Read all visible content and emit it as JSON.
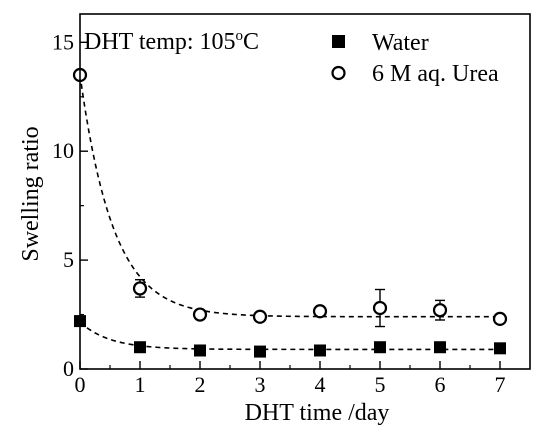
{
  "chart_data": {
    "type": "scatter",
    "xlabel": "DHT time /day",
    "ylabel": "Swelling ratio",
    "annotation_main": "DHT temp: 105",
    "annotation_sup": "o",
    "annotation_unit": "C",
    "xlim": [
      0,
      7.5
    ],
    "ylim": [
      0,
      16.3
    ],
    "x_ticks": [
      0,
      1,
      2,
      3,
      4,
      5,
      6,
      7
    ],
    "y_ticks": [
      0,
      5,
      10,
      15
    ],
    "legend_position": "top-right",
    "grid": false,
    "fit_line_style": "dashed",
    "series": [
      {
        "name": "Water",
        "marker": "filled-square",
        "color": "#000000",
        "x": [
          0,
          1,
          2,
          3,
          4,
          5,
          6,
          7
        ],
        "y": [
          2.2,
          1.0,
          0.85,
          0.8,
          0.85,
          1.0,
          1.0,
          0.95
        ],
        "error": [
          0,
          0,
          0,
          0,
          0,
          0,
          0,
          0
        ],
        "fit": {
          "a": 1.25,
          "k": 2.0,
          "c": 0.9
        }
      },
      {
        "name": "6 M aq. Urea",
        "marker": "open-circle",
        "color": "#000000",
        "x": [
          0,
          1,
          2,
          3,
          4,
          5,
          6,
          7
        ],
        "y": [
          13.5,
          3.7,
          2.5,
          2.4,
          2.65,
          2.8,
          2.7,
          2.3
        ],
        "error": [
          0,
          0.4,
          0,
          0,
          0,
          0.85,
          0.45,
          0
        ],
        "fit": {
          "a": 11.1,
          "k": 1.8,
          "c": 2.4
        }
      }
    ]
  }
}
